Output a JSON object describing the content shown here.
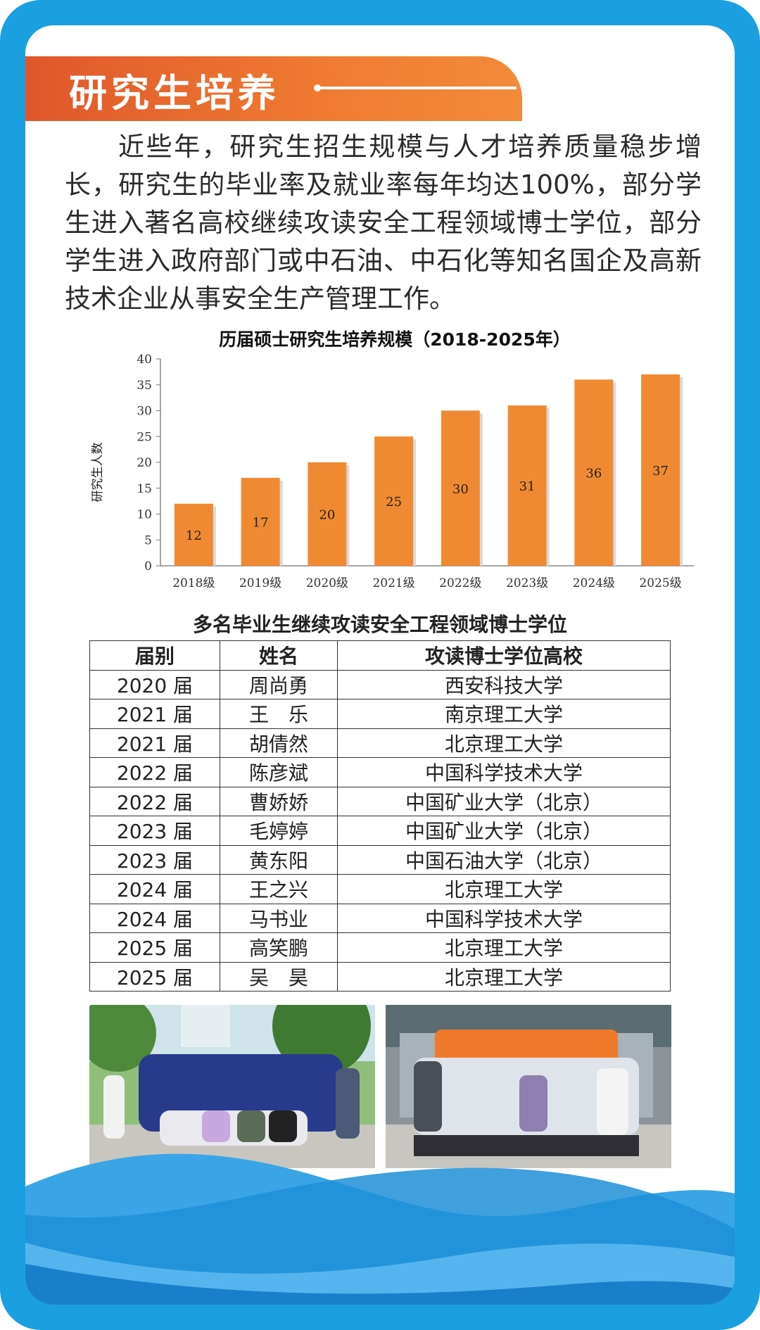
{
  "section": {
    "title": "研究生培养"
  },
  "intro_text": "近些年，研究生招生规模与人才培养质量稳步增长，研究生的毕业率及就业率每年均达100%，部分学生进入著名高校继续攻读安全工程领域博士学位，部分学生进入政府部门或中石油、中石化等知名国企及高新技术企业从事安全生产管理工作。",
  "chart_data": {
    "type": "bar",
    "title": "历届硕士研究生培养规模（2018-2025年）",
    "xlabel": "",
    "ylabel": "研究生人数",
    "categories": [
      "2018级",
      "2019级",
      "2020级",
      "2021级",
      "2022级",
      "2023级",
      "2024级",
      "2025级"
    ],
    "values": [
      12,
      17,
      20,
      25,
      30,
      31,
      36,
      37
    ],
    "ylim": [
      0,
      40
    ],
    "yticks": [
      0,
      5,
      10,
      15,
      20,
      25,
      30,
      35,
      40
    ],
    "bar_color": "#f08a32",
    "grid": false
  },
  "table": {
    "title": "多名毕业生继续攻读安全工程领域博士学位",
    "headers": [
      "届别",
      "姓名",
      "攻读博士学位高校"
    ],
    "rows": [
      [
        "2020 届",
        "周尚勇",
        "西安科技大学"
      ],
      [
        "2021 届",
        "王　乐",
        "南京理工大学"
      ],
      [
        "2021 届",
        "胡倩然",
        "北京理工大学"
      ],
      [
        "2022 届",
        "陈彦斌",
        "中国科学技术大学"
      ],
      [
        "2022 届",
        "曹娇娇",
        "中国矿业大学（北京）"
      ],
      [
        "2023 届",
        "毛婷婷",
        "中国矿业大学（北京）"
      ],
      [
        "2023 届",
        "黄东阳",
        "中国石油大学（北京）"
      ],
      [
        "2024 届",
        "王之兴",
        "北京理工大学"
      ],
      [
        "2024 届",
        "马书业",
        "中国科学技术大学"
      ],
      [
        "2025 届",
        "高笑鹏",
        "北京理工大学"
      ],
      [
        "2025 届",
        "吴　昊",
        "北京理工大学"
      ]
    ]
  },
  "colors": {
    "frame": "#1a9fe0",
    "banner": "#e8662e",
    "bar": "#f08a32"
  },
  "photos": [
    "graduation-group-photo",
    "lab-group-photo"
  ]
}
